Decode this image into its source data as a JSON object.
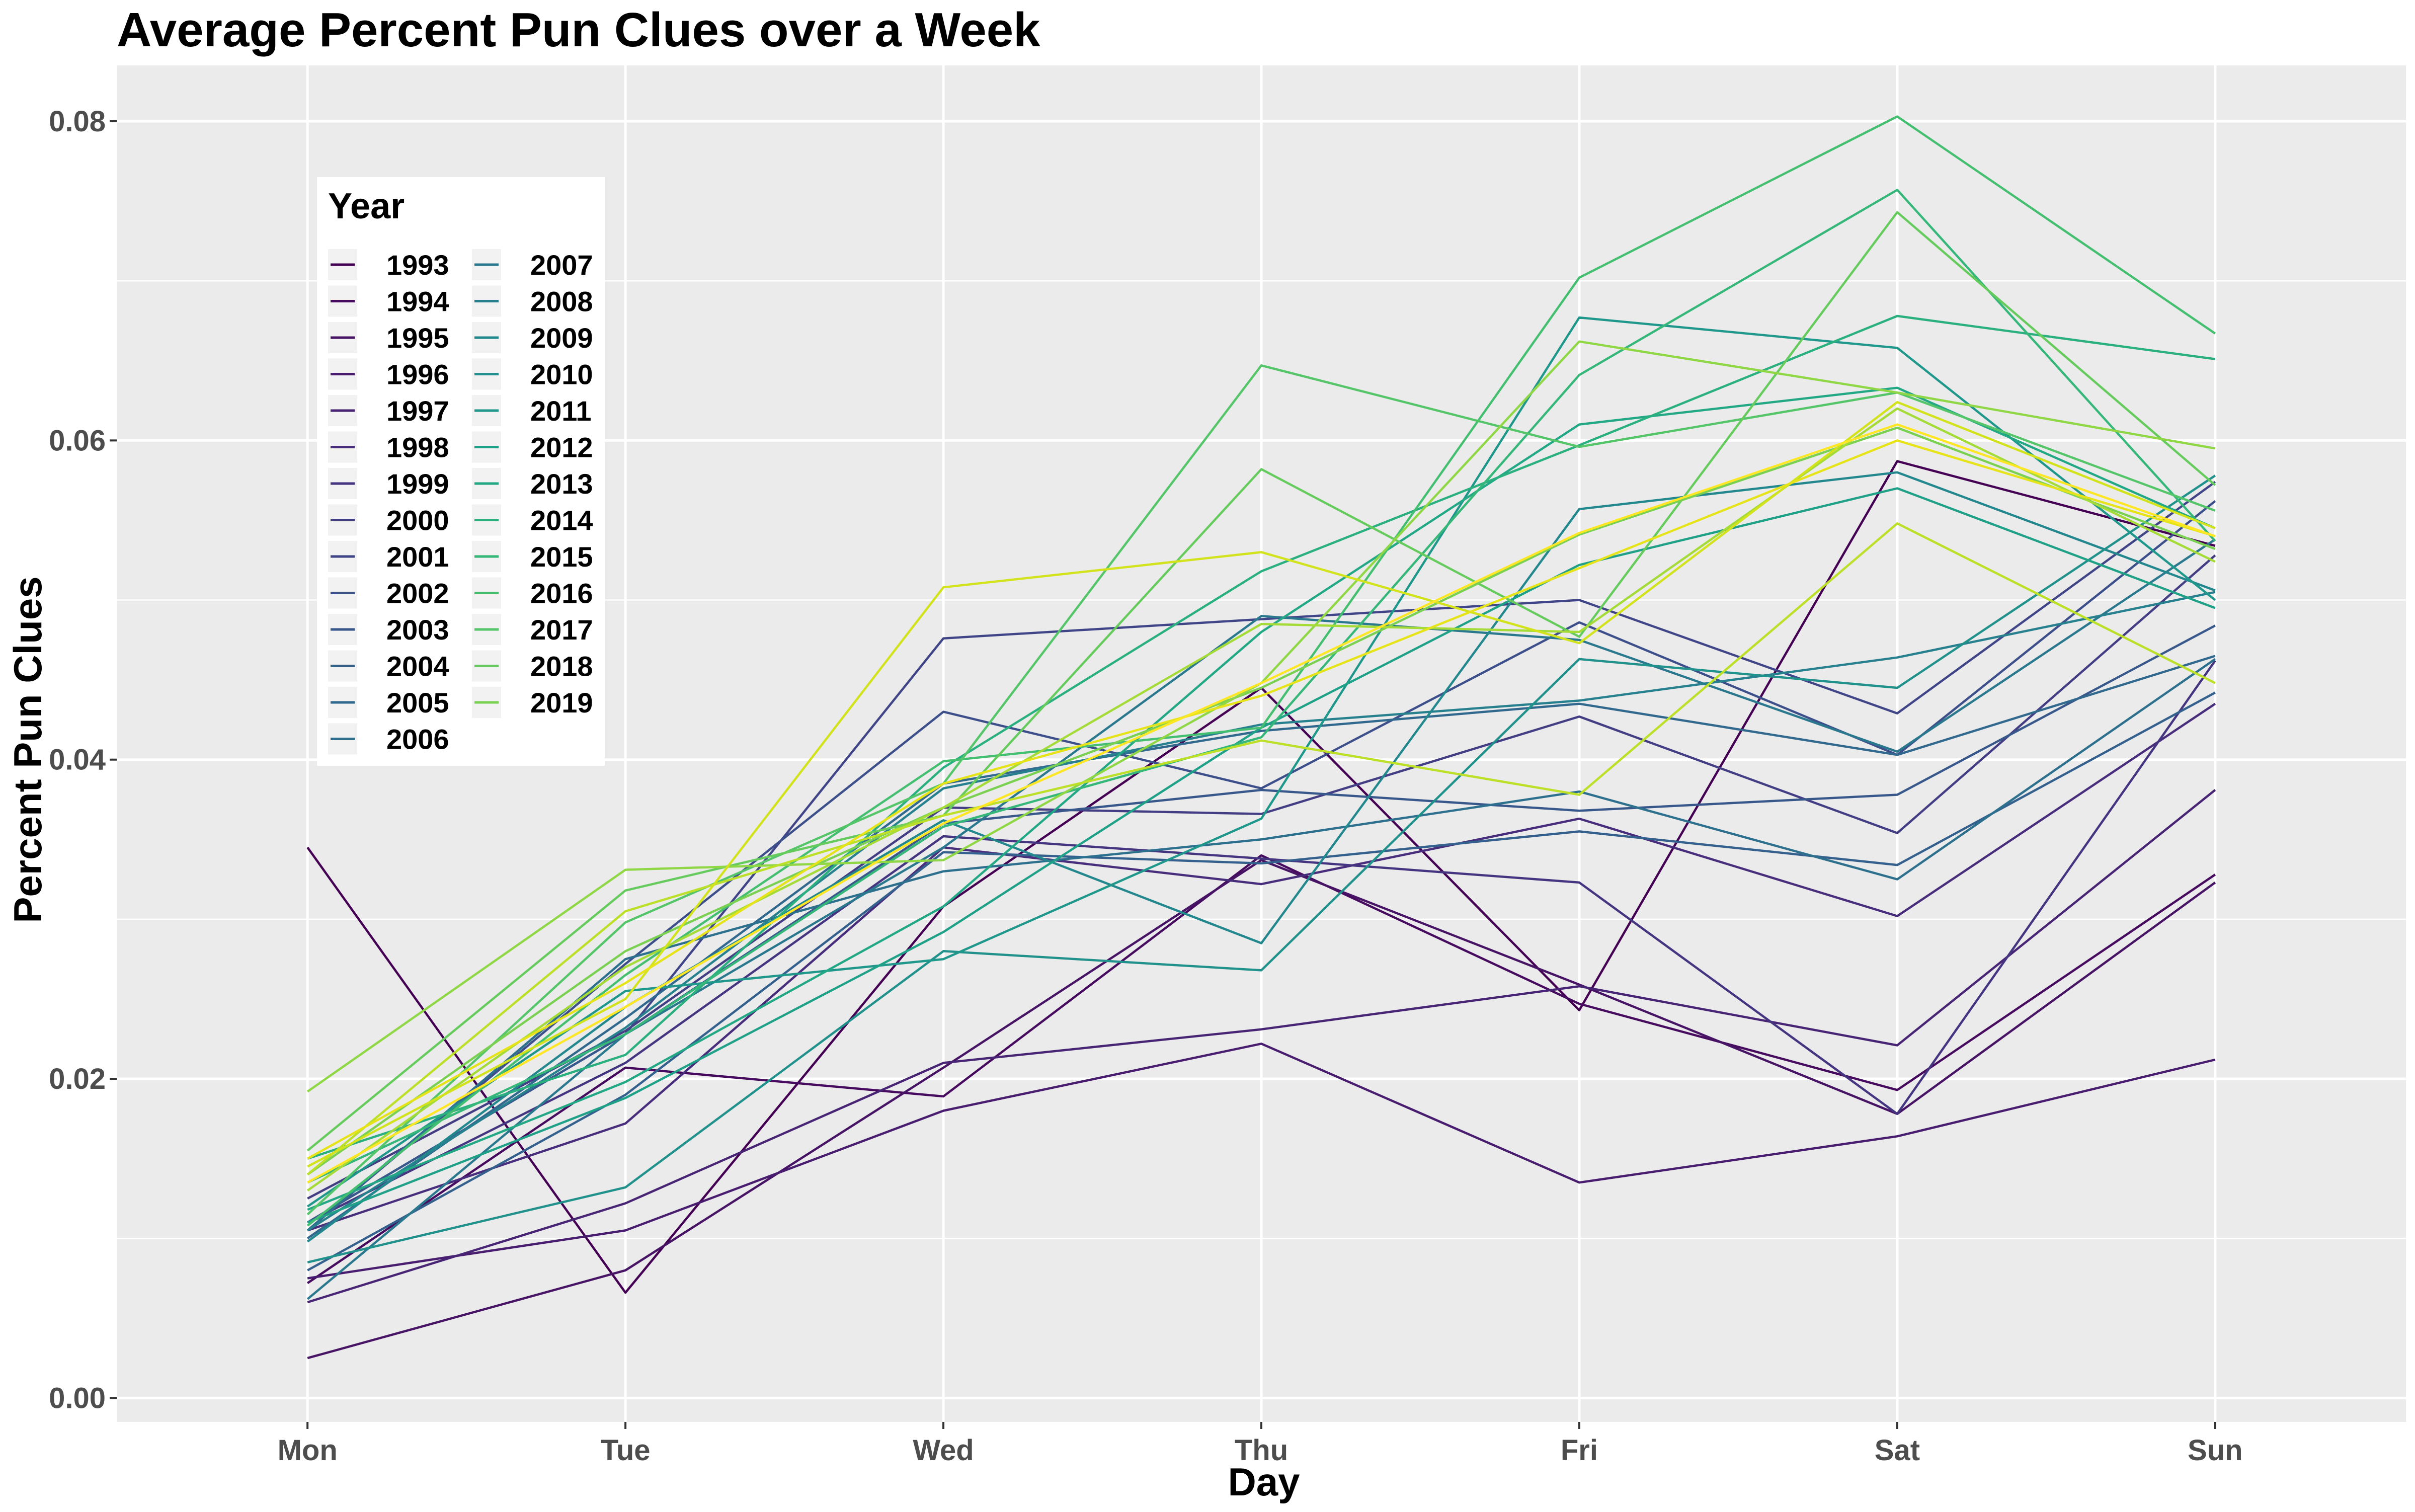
{
  "chart_data": {
    "type": "line",
    "title": "Average Percent Pun Clues over a Week",
    "xlabel": "Day",
    "ylabel": "Percent Pun Clues",
    "categories": [
      "Mon",
      "Tue",
      "Wed",
      "Thu",
      "Fri",
      "Sat",
      "Sun"
    ],
    "ylim": [
      -0.0015,
      0.0835
    ],
    "yticks": [
      0.0,
      0.02,
      0.04,
      0.06,
      0.08
    ],
    "ytick_labels": [
      "0.00",
      "0.02",
      "0.04",
      "0.06",
      "0.08"
    ],
    "grid": true,
    "legend": {
      "title": "Year",
      "placement": "top-left-inside",
      "columns": 2
    },
    "series": [
      {
        "name": "1993",
        "color": "#440154",
        "values": [
          0.0345,
          0.0066,
          0.0308,
          0.0445,
          0.0243,
          0.0587,
          0.0534
        ]
      },
      {
        "name": "1994",
        "color": "#460B5E",
        "values": [
          0.0072,
          0.0207,
          0.0189,
          0.034,
          0.0247,
          0.0193,
          0.0328
        ]
      },
      {
        "name": "1995",
        "color": "#471365",
        "values": [
          0.0025,
          0.008,
          0.0207,
          0.0337,
          0.0259,
          0.0178,
          0.0323
        ]
      },
      {
        "name": "1996",
        "color": "#481C6E",
        "values": [
          0.0075,
          0.0105,
          0.018,
          0.0222,
          0.0135,
          0.0164,
          0.0212
        ]
      },
      {
        "name": "1997",
        "color": "#482475",
        "values": [
          0.006,
          0.0122,
          0.021,
          0.0231,
          0.0258,
          0.0221,
          0.0381
        ]
      },
      {
        "name": "1998",
        "color": "#472D7B",
        "values": [
          0.0105,
          0.0172,
          0.0345,
          0.0322,
          0.0363,
          0.0302,
          0.0435
        ]
      },
      {
        "name": "1999",
        "color": "#453581",
        "values": [
          0.011,
          0.021,
          0.0352,
          0.0338,
          0.0323,
          0.0178,
          0.0462
        ]
      },
      {
        "name": "2000",
        "color": "#433D84",
        "values": [
          0.0125,
          0.023,
          0.037,
          0.0366,
          0.0427,
          0.0354,
          0.0528
        ]
      },
      {
        "name": "2001",
        "color": "#404588",
        "values": [
          0.011,
          0.0228,
          0.0476,
          0.0488,
          0.05,
          0.0429,
          0.0574
        ]
      },
      {
        "name": "2002",
        "color": "#3C4F8A",
        "values": [
          0.0105,
          0.0272,
          0.043,
          0.0382,
          0.0486,
          0.0403,
          0.0562
        ]
      },
      {
        "name": "2003",
        "color": "#38588C",
        "values": [
          0.011,
          0.0228,
          0.036,
          0.0381,
          0.0368,
          0.0378,
          0.0484
        ]
      },
      {
        "name": "2004",
        "color": "#34608D",
        "values": [
          0.008,
          0.019,
          0.0342,
          0.0335,
          0.0355,
          0.0334,
          0.0442
        ]
      },
      {
        "name": "2005",
        "color": "#30688E",
        "values": [
          0.01,
          0.0238,
          0.0385,
          0.0418,
          0.0435,
          0.0403,
          0.0465
        ]
      },
      {
        "name": "2006",
        "color": "#2D708E",
        "values": [
          0.0105,
          0.0275,
          0.033,
          0.035,
          0.038,
          0.0325,
          0.0463
        ]
      },
      {
        "name": "2007",
        "color": "#2A788E",
        "values": [
          0.0062,
          0.0228,
          0.0345,
          0.049,
          0.0475,
          0.0405,
          0.0538
        ]
      },
      {
        "name": "2008",
        "color": "#27808E",
        "values": [
          0.0105,
          0.0232,
          0.0382,
          0.0422,
          0.0437,
          0.0464,
          0.0505
        ]
      },
      {
        "name": "2009",
        "color": "#23888E",
        "values": [
          0.0098,
          0.0245,
          0.0362,
          0.0285,
          0.0557,
          0.058,
          0.0506
        ]
      },
      {
        "name": "2010",
        "color": "#21918C",
        "values": [
          0.0085,
          0.0132,
          0.028,
          0.0268,
          0.0463,
          0.0445,
          0.0578
        ]
      },
      {
        "name": "2011",
        "color": "#1F988B",
        "values": [
          0.012,
          0.0255,
          0.0275,
          0.0363,
          0.0677,
          0.0658,
          0.05
        ]
      },
      {
        "name": "2012",
        "color": "#1FA188",
        "values": [
          0.011,
          0.0188,
          0.0292,
          0.042,
          0.0522,
          0.057,
          0.0495
        ]
      },
      {
        "name": "2013",
        "color": "#22A884",
        "values": [
          0.0118,
          0.0198,
          0.0308,
          0.048,
          0.061,
          0.0633,
          0.0545
        ]
      },
      {
        "name": "2014",
        "color": "#2AB07F",
        "values": [
          0.015,
          0.0215,
          0.0395,
          0.0518,
          0.0597,
          0.0678,
          0.0651
        ]
      },
      {
        "name": "2015",
        "color": "#35B779",
        "values": [
          0.0135,
          0.0228,
          0.0358,
          0.0414,
          0.0641,
          0.0757,
          0.0537
        ]
      },
      {
        "name": "2016",
        "color": "#44BF70",
        "values": [
          0.0108,
          0.0265,
          0.0399,
          0.042,
          0.0702,
          0.0803,
          0.0667
        ]
      },
      {
        "name": "2017",
        "color": "#54C568",
        "values": [
          0.0115,
          0.0298,
          0.0385,
          0.0647,
          0.0596,
          0.063,
          0.0556
        ]
      },
      {
        "name": "2018",
        "color": "#66CB5D",
        "values": [
          0.0155,
          0.0318,
          0.0365,
          0.0582,
          0.0477,
          0.0743,
          0.0572
        ]
      },
      {
        "name": "2019",
        "color": "#7AD151",
        "values": [
          0.014,
          0.028,
          0.037,
          0.0445,
          0.0541,
          0.0608,
          0.0532
        ]
      },
      {
        "name": "",
        "color": "#8FD744",
        "values": [
          0.0192,
          0.0331,
          0.0337,
          0.0448,
          0.0662,
          0.063,
          0.0595
        ]
      },
      {
        "name": "",
        "color": "#A5DB36",
        "values": [
          0.013,
          0.027,
          0.037,
          0.0485,
          0.048,
          0.062,
          0.0524
        ]
      },
      {
        "name": "",
        "color": "#BCDF27",
        "values": [
          0.014,
          0.0305,
          0.0365,
          0.0412,
          0.0378,
          0.0548,
          0.0448
        ]
      },
      {
        "name": "",
        "color": "#D2E21B",
        "values": [
          0.0145,
          0.025,
          0.0508,
          0.053,
          0.0473,
          0.0624,
          0.0545
        ]
      },
      {
        "name": "",
        "color": "#E6E419",
        "values": [
          0.015,
          0.026,
          0.0385,
          0.044,
          0.052,
          0.06,
          0.054
        ]
      },
      {
        "name": "",
        "color": "#FDE725",
        "values": [
          0.0135,
          0.0245,
          0.036,
          0.0448,
          0.0542,
          0.061,
          0.054
        ]
      }
    ]
  }
}
